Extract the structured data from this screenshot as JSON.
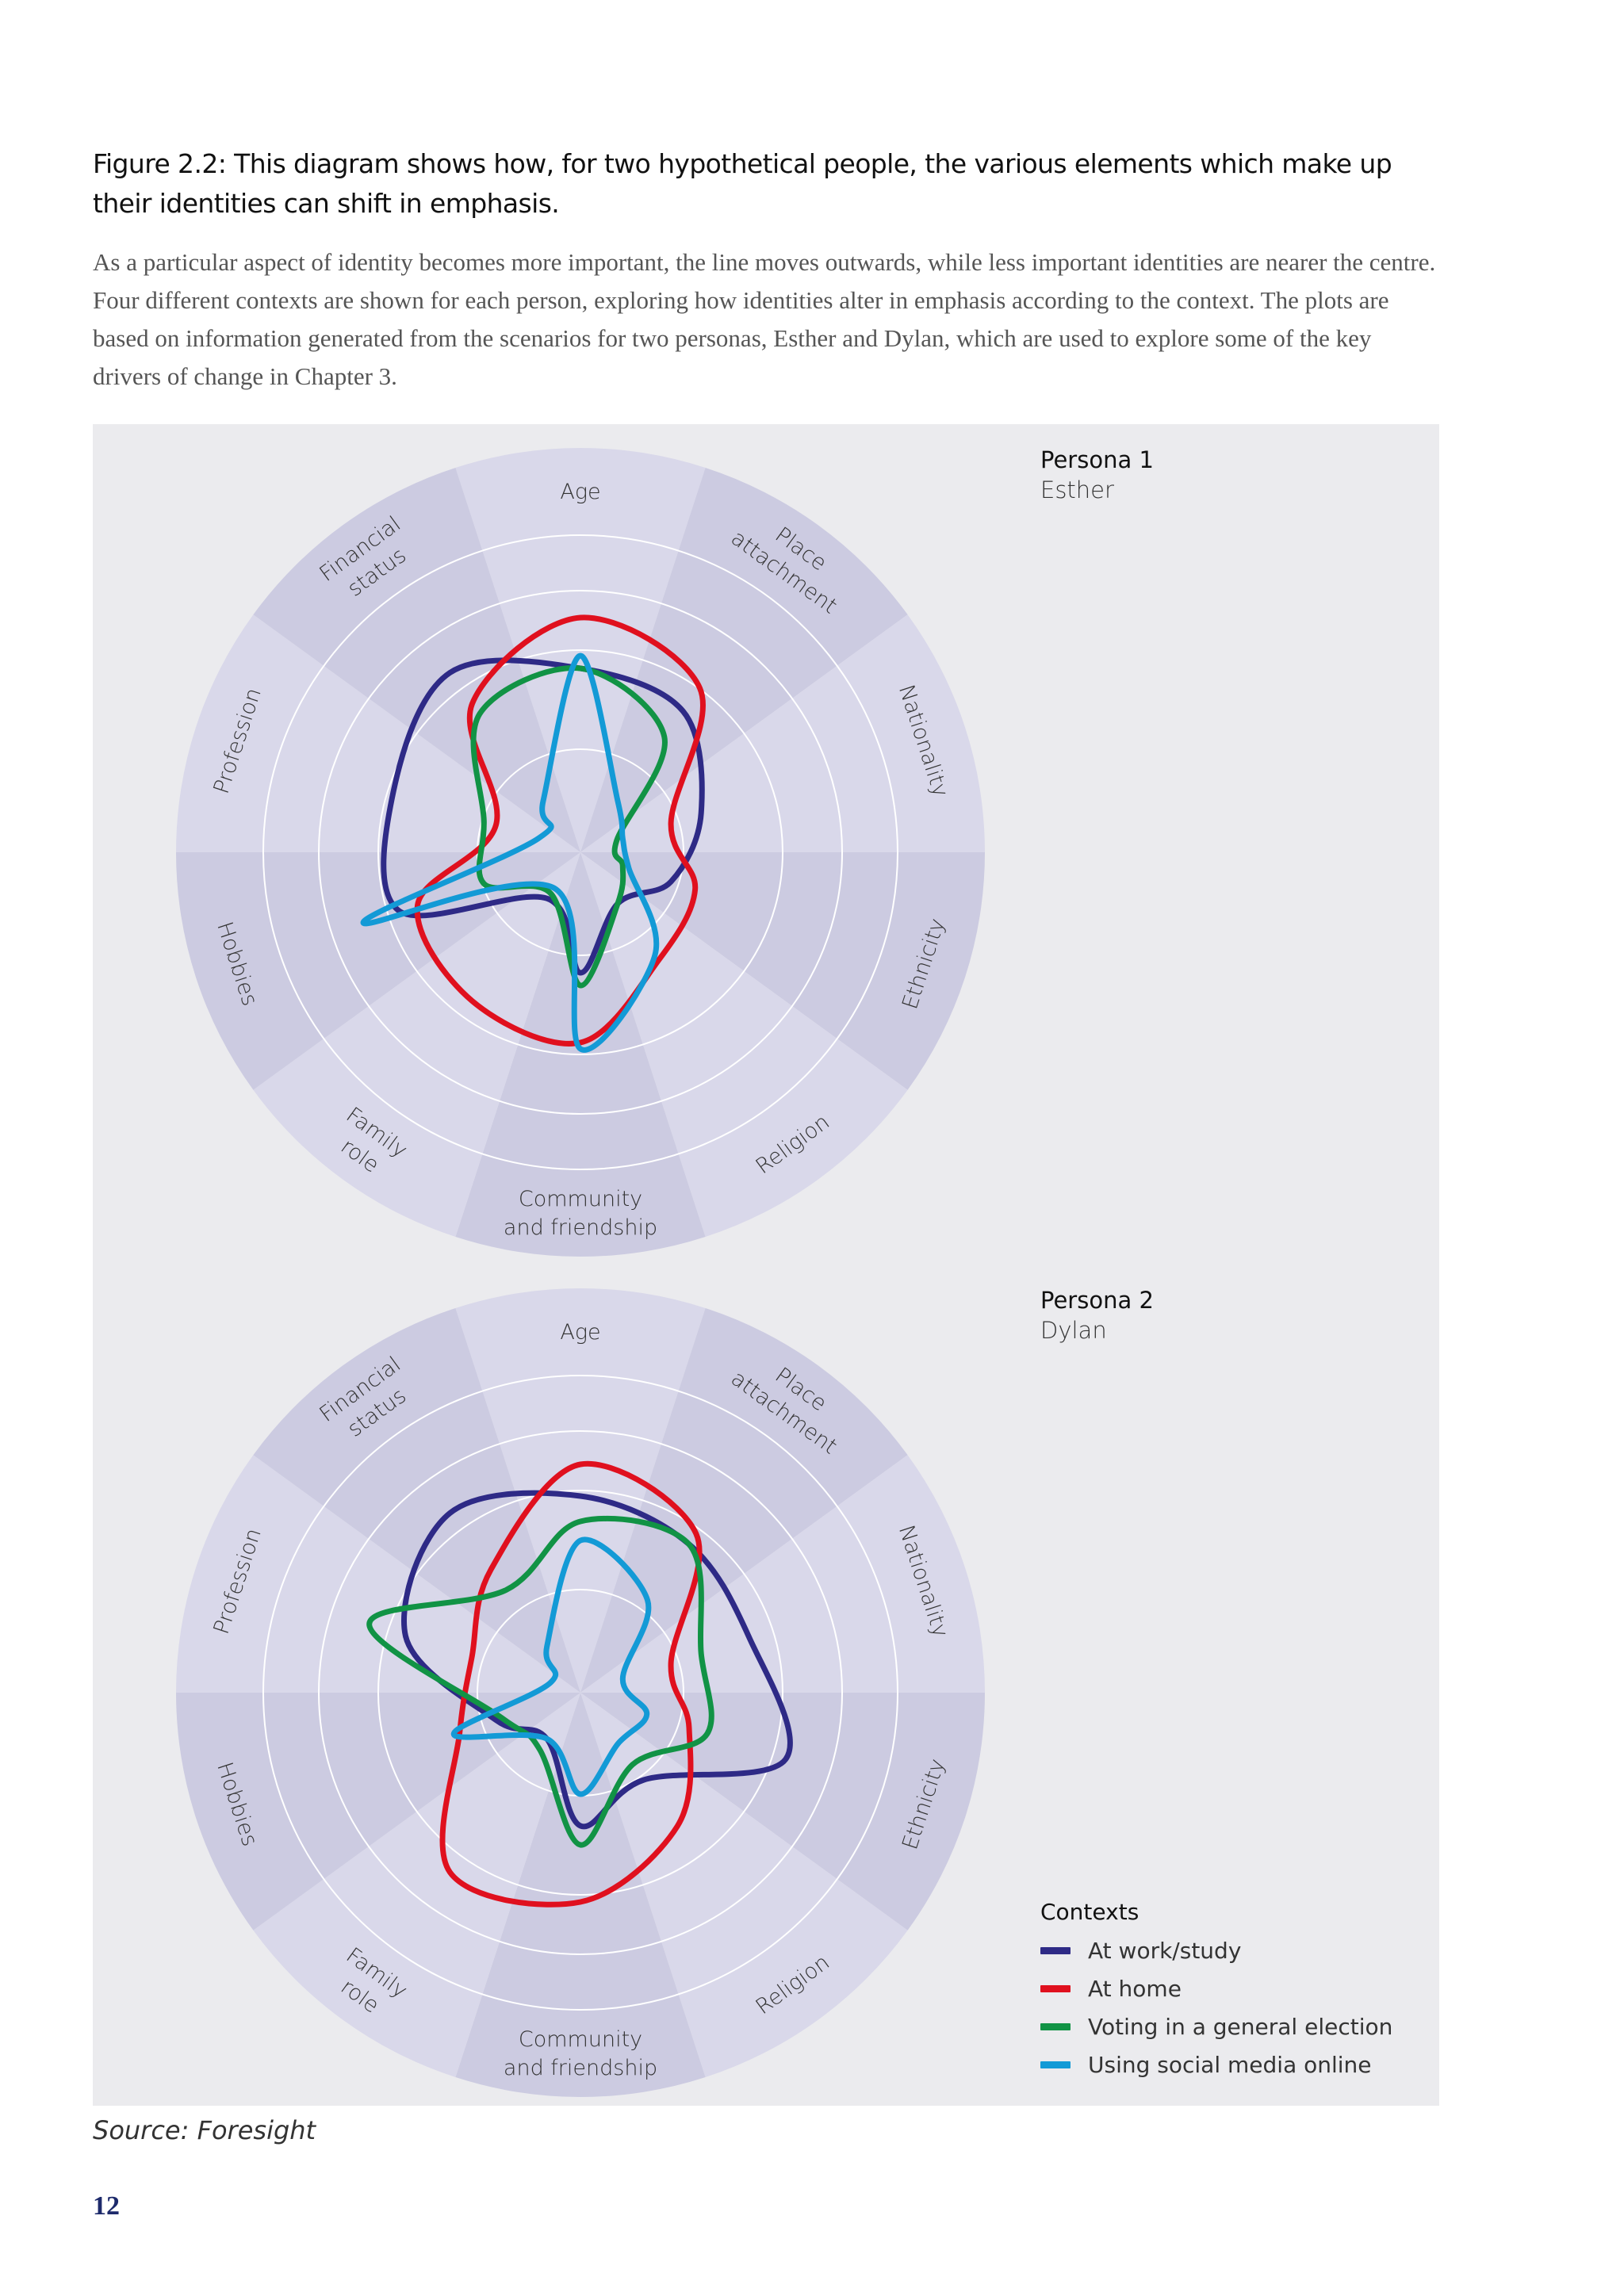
{
  "figure": {
    "title": "Figure 2.2: This diagram shows how, for two hypothetical people, the various elements which make up their identities can shift in emphasis.",
    "description": "As a particular aspect of identity becomes more important, the line moves outwards, while less important identities are nearer the centre. Four different contexts are shown for each person, exploring how identities alter in emphasis according to the context. The plots are based on information generated from the scenarios for two personas, Esther and Dylan, which are used to explore some of the key drivers of change in Chapter 3."
  },
  "segments": [
    [
      "Age"
    ],
    [
      "Place",
      "attachment"
    ],
    [
      "Nationality"
    ],
    [
      "Ethnicity"
    ],
    [
      "Religion"
    ],
    [
      "Community",
      "and friendship"
    ],
    [
      "Family",
      "role"
    ],
    [
      "Hobbies"
    ],
    [
      "Profession"
    ],
    [
      "Financial",
      "status"
    ]
  ],
  "personas": [
    {
      "label": "Persona 1",
      "name": "Esther"
    },
    {
      "label": "Persona 2",
      "name": "Dylan"
    }
  ],
  "legend": {
    "title": "Contexts",
    "items": [
      {
        "label": "At work/study",
        "color": "#2e2a86"
      },
      {
        "label": "At home",
        "color": "#e0101e"
      },
      {
        "label": "Voting in a general election",
        "color": "#119345"
      },
      {
        "label": "Using social media online",
        "color": "#139ad6"
      }
    ]
  },
  "chart_data": [
    {
      "type": "radar",
      "persona": "Esther",
      "axes": [
        "Age",
        "Place attachment",
        "Nationality",
        "Ethnicity",
        "Religion",
        "Community and friendship",
        "Family role",
        "Hobbies",
        "Profession",
        "Financial status"
      ],
      "scale_max": 1,
      "series": [
        {
          "name": "At work/study",
          "color": "#2e2a86",
          "values": [
            0.58,
            0.55,
            0.4,
            0.3,
            0.2,
            0.38,
            0.18,
            0.6,
            0.62,
            0.7
          ]
        },
        {
          "name": "At home",
          "color": "#e0101e",
          "values": [
            0.74,
            0.64,
            0.3,
            0.38,
            0.42,
            0.6,
            0.58,
            0.54,
            0.28,
            0.58
          ]
        },
        {
          "name": "Voting in a general election",
          "color": "#119345",
          "values": [
            0.58,
            0.45,
            0.12,
            0.14,
            0.2,
            0.42,
            0.16,
            0.32,
            0.32,
            0.54
          ]
        },
        {
          "name": "Using social media online",
          "color": "#139ad6",
          "values": [
            0.62,
            0.2,
            0.14,
            0.16,
            0.4,
            0.62,
            0.14,
            0.72,
            0.14,
            0.2
          ]
        }
      ]
    },
    {
      "type": "radar",
      "persona": "Dylan",
      "axes": [
        "Age",
        "Place attachment",
        "Nationality",
        "Ethnicity",
        "Religion",
        "Community and friendship",
        "Family role",
        "Hobbies",
        "Profession",
        "Financial status"
      ],
      "scale_max": 1,
      "series": [
        {
          "name": "At work/study",
          "color": "#2e2a86",
          "values": [
            0.62,
            0.58,
            0.56,
            0.68,
            0.34,
            0.42,
            0.18,
            0.28,
            0.58,
            0.7
          ]
        },
        {
          "name": "At home",
          "color": "#e0101e",
          "values": [
            0.72,
            0.62,
            0.3,
            0.36,
            0.52,
            0.66,
            0.7,
            0.4,
            0.36,
            0.48
          ]
        },
        {
          "name": "Voting in a general election",
          "color": "#119345",
          "values": [
            0.54,
            0.58,
            0.4,
            0.42,
            0.28,
            0.48,
            0.22,
            0.26,
            0.7,
            0.4
          ]
        },
        {
          "name": "Using social media online",
          "color": "#139ad6",
          "values": [
            0.48,
            0.36,
            0.14,
            0.22,
            0.2,
            0.32,
            0.18,
            0.42,
            0.1,
            0.18
          ]
        }
      ]
    }
  ],
  "source": "Source: Foresight",
  "page_number": "12"
}
